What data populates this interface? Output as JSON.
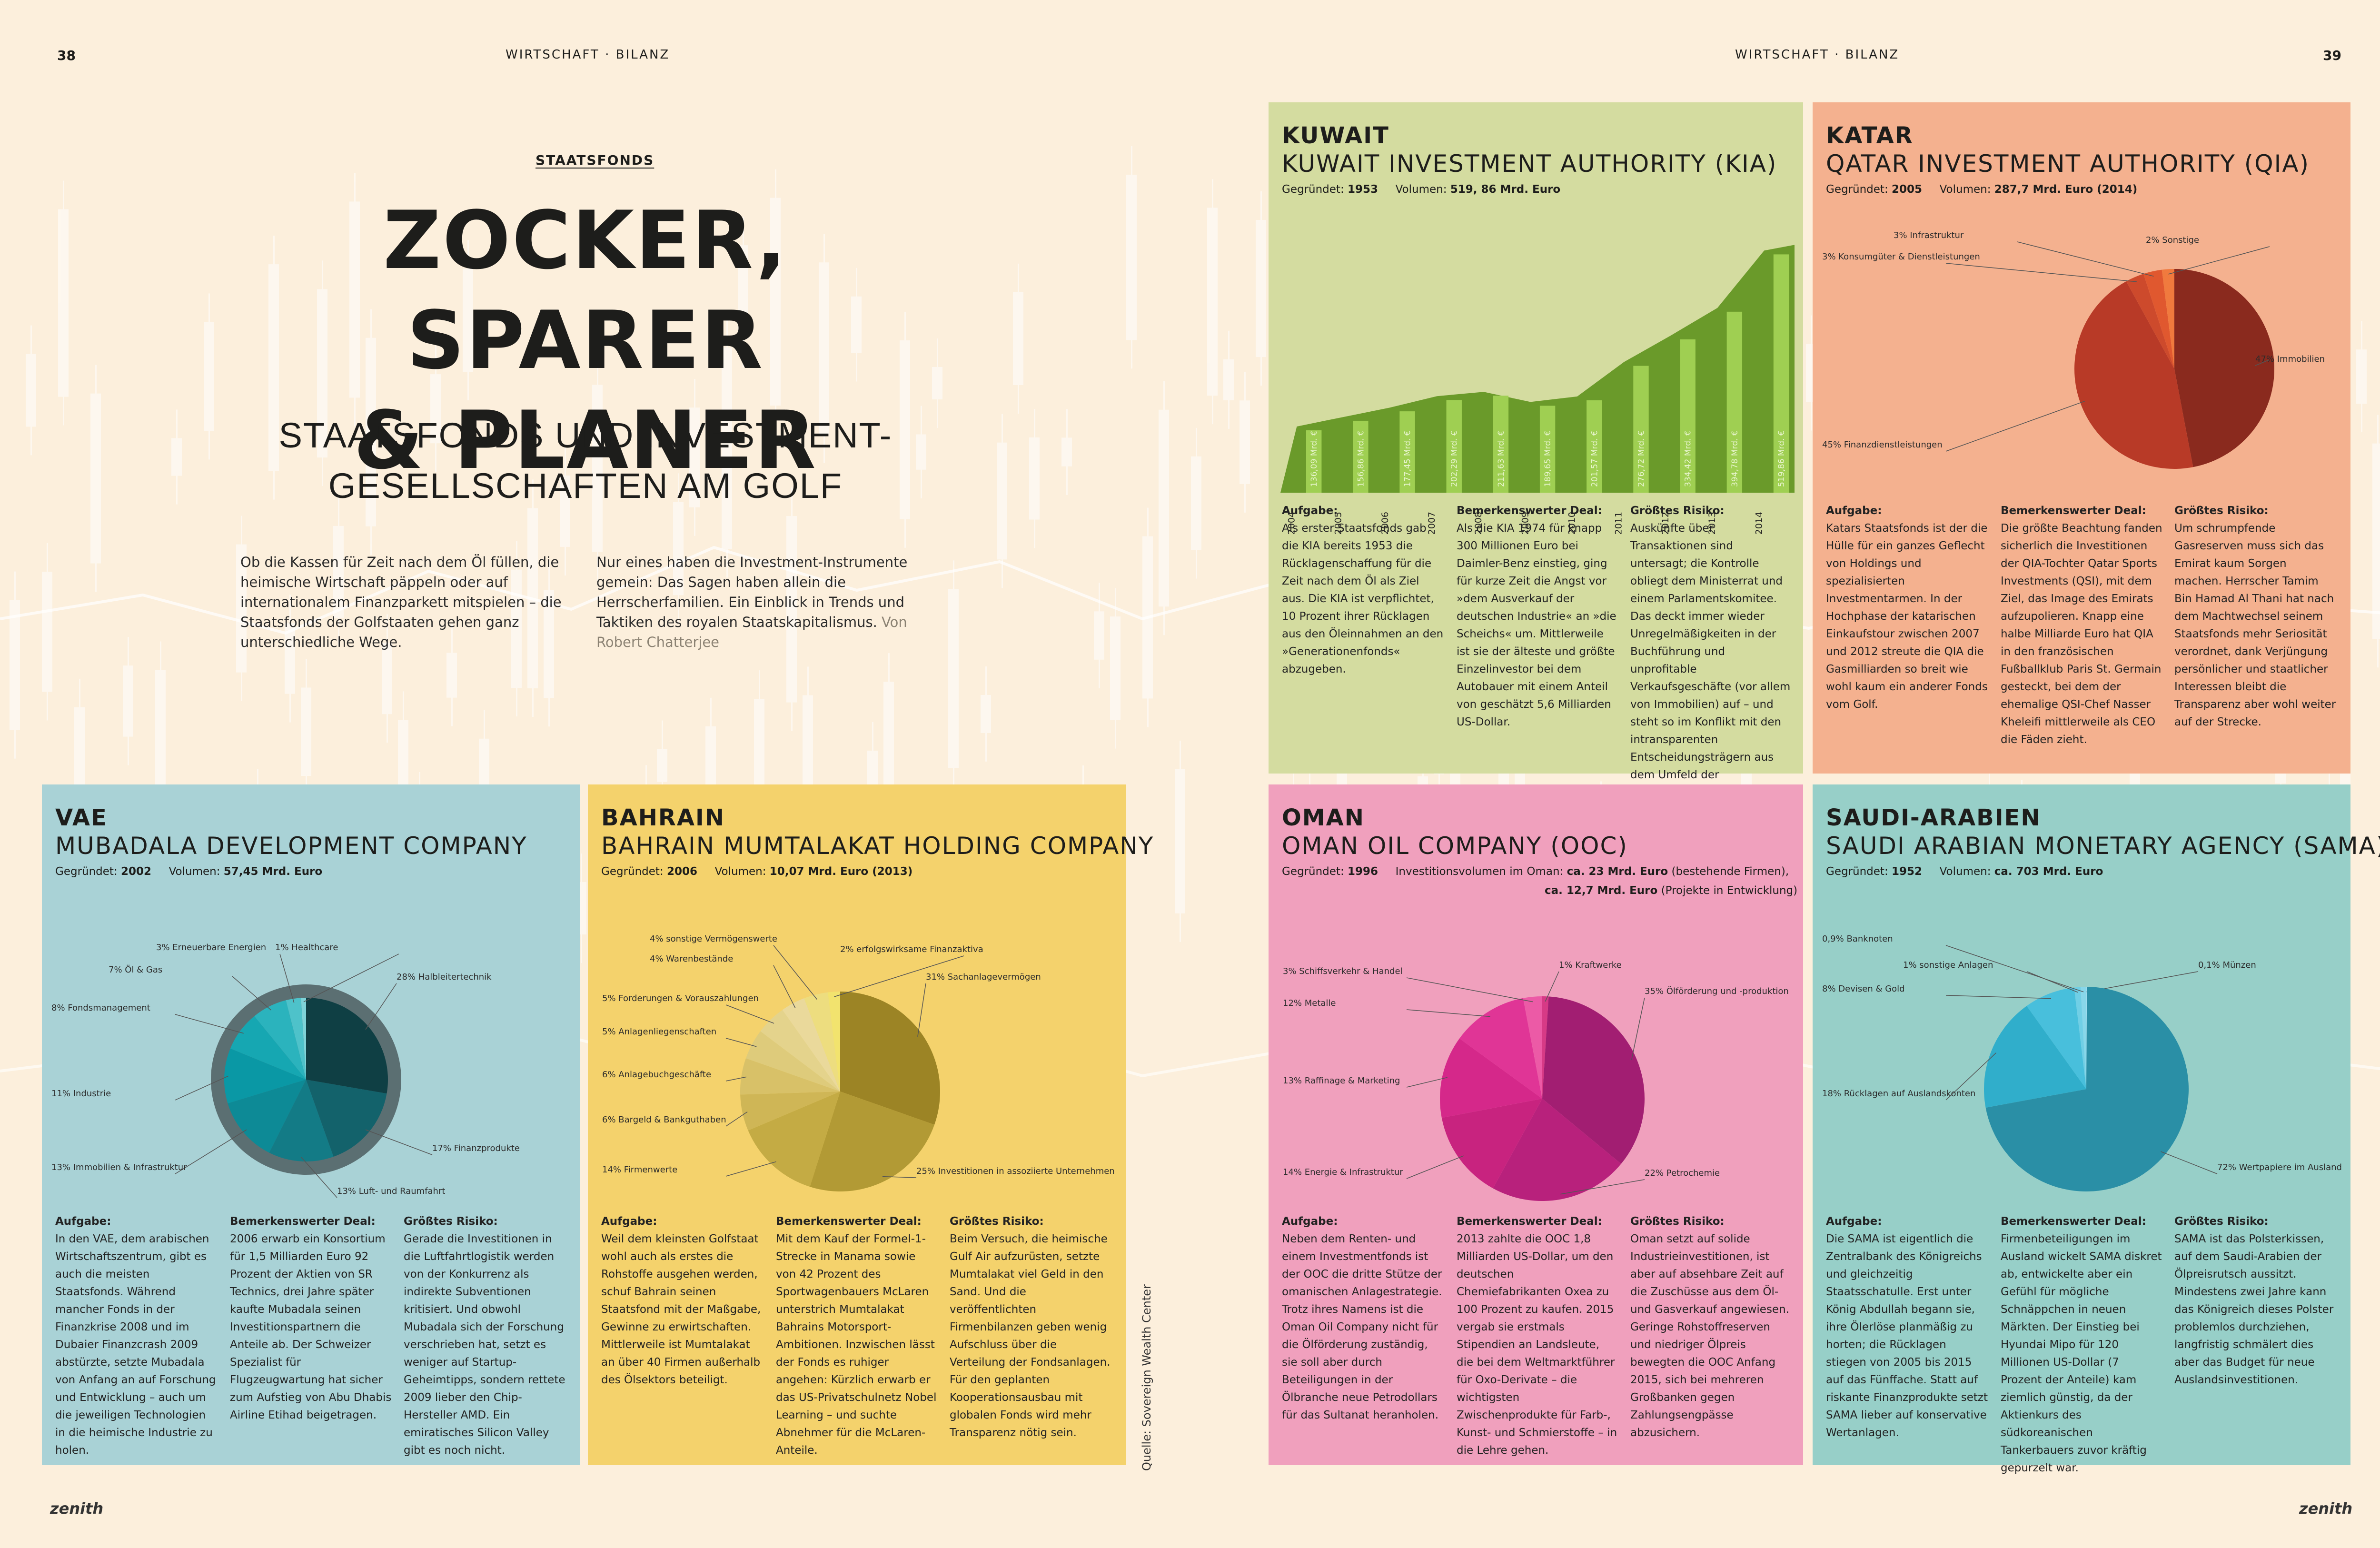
{
  "header": {
    "left_folio": "WIRTSCHAFT · BILANZ",
    "right_folio": "WIRTSCHAFT · BILANZ",
    "page_left": "38",
    "page_right": "39",
    "logo": "zenith"
  },
  "article": {
    "kicker": "STAATSFONDS",
    "headline_1": "ZOCKER, SPARER",
    "headline_2": "& PLANER",
    "deck_1": "STAATSFONDS UND INVESTMENT-",
    "deck_2": "GESELLSCHAFTEN AM GOLF",
    "intro_left": "Ob die Kassen für Zeit nach dem Öl füllen, die heimische Wirtschaft päppeln oder auf internationalem Finanzparkett mitspielen – die Staatsfonds der Golfstaaten gehen ganz unterschiedliche Wege.",
    "intro_right": "Nur eines haben die Investment-Instrumente gemein: Das Sagen haben allein die Herrscherfamilien. Ein Einblick in Trends und Taktiken des royalen Staatskapitalismus.",
    "byline": "Von Robert Chatterjee",
    "source": "Quelle: Sovereign Wealth Center"
  },
  "labels": {
    "task": "Aufgabe:",
    "deal": "Bemerkenswerter Deal:",
    "risk": "Größtes Risiko:",
    "founded": "Gegründet:",
    "volume": "Volumen:"
  },
  "colors": {
    "kuwait": "#d4dca0",
    "katar": "#f4b18f",
    "vae": "#a9d2d6",
    "bahrain": "#f4d26c",
    "oman": "#f0a0bd",
    "saudi": "#97cfc8"
  },
  "panels": {
    "kuwait": {
      "country": "KUWAIT",
      "fund": "KUWAIT INVESTMENT AUTHORITY (KIA)",
      "founded": "1953",
      "volume": "519, 86 Mrd. Euro",
      "task": "Als erster Staatsfonds gab die KIA bereits 1953 die Rücklagenschaffung für die Zeit nach dem Öl als Ziel aus. Die KIA ist verpflichtet, 10 Prozent ihrer Rücklagen aus den Öleinnahmen an den »Generationenfonds« abzugeben.",
      "deal": "Als die KIA 1974 für knapp 300 Millionen Euro bei Daimler-Benz einstieg, ging für kurze Zeit die Angst vor »dem Ausverkauf der deutschen Industrie« an »die Scheichs« um. Mittlerweile ist sie der älteste und größte Einzelinvestor bei dem Autobauer mit einem Anteil von geschätzt 5,6 Milliarden US-Dollar.",
      "risk": "Auskünfte über Transaktionen sind untersagt; die Kontrolle obliegt dem Ministerrat und einem Parlamentskomitee. Das deckt immer wieder Unregelmäßigkeiten in der Buchführung und unprofitable Verkaufsgeschäfte (vor allem von Immobilien) auf – und steht so im Konflikt mit den intransparenten Entscheidungsträgern aus dem Umfeld der Herrscherfamilie Al Sabah."
    },
    "katar": {
      "country": "KATAR",
      "fund": "QATAR INVESTMENT AUTHORITY (QIA)",
      "founded": "2005",
      "volume": "287,7 Mrd. Euro (2014)",
      "task": "Katars Staatsfonds ist der die Hülle für ein ganzes Geflecht von Holdings und spezialisierten Investmentarmen. In der Hochphase der katarischen Einkaufstour zwischen 2007 und 2012 streute die QIA die Gasmilliarden so breit wie wohl kaum ein anderer Fonds vom Golf.",
      "deal": "Die größte Beachtung fanden sicherlich die Investitionen der QIA-Tochter Qatar Sports Investments (QSI), mit dem Ziel, das Image des Emirats aufzupolieren. Knapp eine halbe Milliarde Euro hat QIA in den französischen Fußballklub Paris St. Germain gesteckt, bei dem der ehemalige QSI-Chef Nasser Kheleifi mittlerweile als CEO die Fäden zieht.",
      "risk": "Um schrumpfende Gasreserven muss sich das Emirat kaum Sorgen machen. Herrscher Tamim Bin Hamad Al Thani hat nach dem Machtwechsel seinem Staatsfonds mehr Seriosität verordnet, dank Verjüngung persönlicher und staatlicher Interessen bleibt die Transparenz aber wohl weiter auf der Strecke."
    },
    "vae": {
      "country": "VAE",
      "fund": "MUBADALA DEVELOPMENT COMPANY",
      "founded": "2002",
      "volume": "57,45 Mrd. Euro",
      "task": "In den VAE, dem arabischen Wirtschaftszentrum, gibt es auch die meisten Staatsfonds. Während mancher Fonds in der Finanzkrise 2008 und im Dubaier Finanzcrash 2009 abstürzte, setzte Mubadala von Anfang an auf Forschung und Entwicklung – auch um die jeweiligen Technologien in die heimische Industrie zu holen.",
      "deal": "2006 erwarb ein Konsortium für 1,5 Milliarden Euro 92 Prozent der Aktien von SR Technics, drei Jahre später kaufte Mubadala seinen Investitionspartnern die Anteile ab. Der Schweizer Spezialist für Flugzeugwartung hat sicher zum Aufstieg von Abu Dhabis Airline Etihad beigetragen.",
      "risk": "Gerade die Investitionen in die Luftfahrtlogistik werden von der Konkurrenz als indirekte Subventionen kritisiert. Und obwohl Mubadala sich der Forschung verschrieben hat, setzt es weniger auf Startup-Geheimtipps, sondern rettete 2009 lieber den Chip-Hersteller AMD. Ein emiratisches Silicon Valley gibt es noch nicht."
    },
    "bahrain": {
      "country": "BAHRAIN",
      "fund": "BAHRAIN MUMTALAKAT HOLDING COMPANY",
      "founded": "2006",
      "volume": "10,07 Mrd. Euro (2013)",
      "task": "Weil dem kleinsten Golfstaat wohl auch als erstes die Rohstoffe ausgehen werden, schuf Bahrain seinen Staatsfond mit der Maßgabe, Gewinne zu erwirtschaften. Mittlerweile ist Mumtalakat an über 40 Firmen außerhalb des Ölsektors beteiligt.",
      "deal": "Mit dem Kauf der Formel-1-Strecke in Manama sowie von 42 Prozent des Sportwagenbauers McLaren unterstrich Mumtalakat Bahrains Motorsport-Ambitionen. Inzwischen lässt der Fonds es ruhiger angehen: Kürzlich erwarb er das US-Privatschulnetz Nobel Learning – und suchte Abnehmer für die McLaren-Anteile.",
      "risk": "Beim Versuch, die heimische Gulf Air aufzurüsten, setzte Mumtalakat viel Geld in den Sand. Und die veröffentlichten Firmenbilanzen geben wenig Aufschluss über die Verteilung der Fondsanlagen. Für den geplanten Kooperationsausbau mit globalen Fonds wird mehr Transparenz nötig sein."
    },
    "oman": {
      "country": "OMAN",
      "fund": "OMAN OIL COMPANY (OOC)",
      "founded": "1996",
      "volume_label": "Investitionsvolumen im Oman:",
      "volume_1": "ca. 23 Mrd. Euro",
      "volume_1_note": "(bestehende Firmen),",
      "volume_2": "ca. 12,7 Mrd. Euro",
      "volume_2_note": "(Projekte in Entwicklung)",
      "task": "Neben dem Renten- und einem Investmentfonds ist der OOC die dritte Stütze der omanischen Anlagestrategie. Trotz ihres Namens ist die Oman Oil Company nicht für die Ölförderung zuständig, sie soll aber durch Beteiligungen in der Ölbranche neue Petrodollars für das Sultanat heranholen.",
      "deal": "2013 zahlte die OOC 1,8 Milliarden US-Dollar, um den deutschen Chemiefabrikanten Oxea zu 100 Prozent zu kaufen. 2015 vergab sie erstmals Stipendien an Landsleute, die bei dem Weltmarktführer für Oxo-Derivate – die wichtigsten Zwischenprodukte für Farb-, Kunst- und Schmierstoffe – in die Lehre gehen.",
      "risk": "Oman setzt auf solide Industrieinvestitionen, ist aber auf absehbare Zeit auf die Zuschüsse aus dem Öl- und Gasverkauf angewiesen. Geringe Rohstoffreserven und niedriger Ölpreis bewegten die OOC Anfang 2015, sich bei mehreren Großbanken gegen Zahlungsengpässe abzusichern."
    },
    "saudi": {
      "country": "SAUDI-ARABIEN",
      "fund": "SAUDI ARABIAN MONETARY AGENCY (SAMA)",
      "founded": "1952",
      "volume": "ca. 703 Mrd. Euro",
      "task": "Die SAMA ist eigentlich die Zentralbank des Königreichs und gleichzeitig Staatsschatulle. Erst unter König Abdullah begann sie, ihre Ölerlöse planmäßig zu horten; die Rücklagen stiegen von 2005 bis 2015 auf das Fünffache. Statt auf riskante Finanzprodukte setzt SAMA lieber auf konservative Wertanlagen.",
      "deal": "Firmenbeteiligungen im Ausland wickelt SAMA diskret ab, entwickelte aber ein Gefühl für mögliche Schnäppchen in neuen Märkten. Der Einstieg bei Hyundai Mipo für 120 Millionen US-Dollar (7 Prozent der Anteile) kam ziemlich günstig, da der Aktienkurs des südkoreanischen Tankerbauers zuvor kräftig gepurzelt war.",
      "risk": "SAMA ist das Polsterkissen, auf dem Saudi-Arabien der Ölpreisrutsch aussitzt. Mindestens zwei Jahre kann das Königreich dieses Polster problemlos durchziehen, langfristig schmälert dies aber das Budget für neue Auslandsinvestitionen."
    }
  },
  "chart_data": [
    {
      "id": "kuwait",
      "type": "bar",
      "categories": [
        "2004",
        "2005",
        "2006",
        "2007",
        "2008",
        "2009",
        "2010",
        "2011",
        "2012",
        "2013",
        "2014"
      ],
      "values": [
        136.09,
        156.86,
        177.45,
        202.29,
        211.63,
        189.65,
        201.57,
        276.72,
        334.42,
        394.78,
        519.86
      ],
      "value_labels": [
        "136,09 Mrd. €",
        "156,86 Mrd. €",
        "177,45 Mrd. €",
        "202,29 Mrd. €",
        "211,63 Mrd. €",
        "189,65 Mrd. €",
        "201,57 Mrd. €",
        "276,72 Mrd. €",
        "334,42 Mrd. €",
        "394,78 Mrd. €",
        "519,86 Mrd. €"
      ]
    },
    {
      "id": "katar",
      "type": "pie",
      "slices": [
        {
          "label": "Immobilien",
          "pct": 47,
          "color": "#8a2a1e"
        },
        {
          "label": "Finanzdienstleistungen",
          "pct": 45,
          "color": "#b83a27"
        },
        {
          "label": "Konsumgüter & Dienstleistungen",
          "pct": 3,
          "color": "#cd4a2c"
        },
        {
          "label": "Infrastruktur",
          "pct": 3,
          "color": "#e0582f"
        },
        {
          "label": "Sonstige",
          "pct": 2,
          "color": "#f07a3e"
        }
      ]
    },
    {
      "id": "vae",
      "type": "pie",
      "slices": [
        {
          "label": "Halbleitertechnik",
          "pct": 28,
          "color": "#0f3f44"
        },
        {
          "label": "Finanzprodukte",
          "pct": 17,
          "color": "#13626b"
        },
        {
          "label": "Luft- und Raumfahrt",
          "pct": 13,
          "color": "#137b86"
        },
        {
          "label": "Immobilien & Infrastruktur",
          "pct": 13,
          "color": "#0d8a96"
        },
        {
          "label": "Industrie",
          "pct": 11,
          "color": "#0a98a5"
        },
        {
          "label": "Fondsmanagement",
          "pct": 8,
          "color": "#16a7b2"
        },
        {
          "label": "Öl & Gas",
          "pct": 7,
          "color": "#2bb3bd"
        },
        {
          "label": "Erneuerbare Energien",
          "pct": 3,
          "color": "#4ec2ca"
        },
        {
          "label": "Healthcare",
          "pct": 1,
          "color": "#7fd3d8"
        }
      ]
    },
    {
      "id": "bahrain",
      "type": "pie",
      "slices": [
        {
          "label": "Sachanlagevermögen",
          "pct": 31,
          "color": "#9c8425"
        },
        {
          "label": "Investitionen in assoziierte Unternehmen",
          "pct": 25,
          "color": "#b29a35"
        },
        {
          "label": "Firmenwerte",
          "pct": 14,
          "color": "#c4ab44"
        },
        {
          "label": "Bargeld & Bankguthaben",
          "pct": 6,
          "color": "#cfb656"
        },
        {
          "label": "Anlagebuchgeschäfte",
          "pct": 6,
          "color": "#d8c168"
        },
        {
          "label": "Anlagenliegenschaften",
          "pct": 5,
          "color": "#decb7b"
        },
        {
          "label": "Forderungen & Vorauszahlungen",
          "pct": 5,
          "color": "#e4d38c"
        },
        {
          "label": "Warenbestände",
          "pct": 4,
          "color": "#ead99b"
        },
        {
          "label": "sonstige Vermögenswerte",
          "pct": 4,
          "color": "#eddd7f"
        },
        {
          "label": "erfolgswirksame Finanzaktiva",
          "pct": 2,
          "color": "#f2e36e"
        }
      ]
    },
    {
      "id": "oman",
      "type": "pie",
      "slices": [
        {
          "label": "Kraftwerke",
          "pct": 1,
          "color": "#d73a86"
        },
        {
          "label": "Ölförderung und -produktion",
          "pct": 35,
          "color": "#a21e72"
        },
        {
          "label": "Petrochemie",
          "pct": 22,
          "color": "#b8217c"
        },
        {
          "label": "Energie & Infrastruktur",
          "pct": 14,
          "color": "#c8237f"
        },
        {
          "label": "Raffinage & Marketing",
          "pct": 13,
          "color": "#d5288a"
        },
        {
          "label": "Metalle",
          "pct": 12,
          "color": "#e03596"
        },
        {
          "label": "Schiffsverkehr & Handel",
          "pct": 3,
          "color": "#ec5aa6"
        }
      ]
    },
    {
      "id": "saudi",
      "type": "pie",
      "slices": [
        {
          "label": "Münzen",
          "pct": 0.1,
          "color": "#9fdcee"
        },
        {
          "label": "Wertpapiere im Ausland",
          "pct": 72,
          "color": "#2a8fa6"
        },
        {
          "label": "Rücklagen auf Auslandskonten",
          "pct": 18,
          "color": "#30aecb"
        },
        {
          "label": "Devisen & Gold",
          "pct": 8,
          "color": "#48bfdc"
        },
        {
          "label": "sonstige Anlagen",
          "pct": 1,
          "color": "#70cfe6"
        },
        {
          "label": "Banknoten",
          "pct": 0.9,
          "color": "#88d7ea"
        }
      ]
    }
  ]
}
